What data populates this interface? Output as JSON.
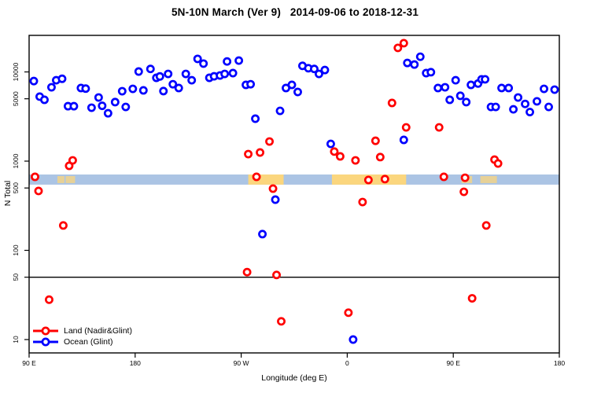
{
  "title": "5N-10N March (Ver 9)   2014-09-06 to 2018-12-31",
  "legend": {
    "items": [
      {
        "label": "Land (Nadir&Glint)",
        "color": "#ff0000"
      },
      {
        "label": "Ocean (Glint)",
        "color": "#0000ff"
      }
    ]
  },
  "chart_data": {
    "type": "scatter",
    "title": "5N-10N March (Ver 9)   2014-09-06 to 2018-12-31",
    "xlabel": "Longitude (deg E)",
    "ylabel": "N Total",
    "grid": false,
    "legend_position": "bottom-left-inside",
    "x_axis": {
      "range": [
        90,
        540
      ],
      "ticks": [
        90,
        180,
        270,
        360,
        450,
        540
      ],
      "tick_labels": [
        "90 E",
        "180",
        "90 W",
        "0",
        "90 E",
        "180"
      ],
      "note": "longitude unwrapped eastward starting at 90E"
    },
    "y_axis": {
      "scale": "log10",
      "range": [
        7,
        26000
      ],
      "ticks": [
        10,
        50,
        100,
        500,
        1000,
        5000,
        10000
      ],
      "tick_labels": [
        "10",
        "50",
        "100",
        "500",
        "1000",
        "5000",
        "10000"
      ]
    },
    "reference_line": {
      "n": 50,
      "color": "#000000"
    },
    "latitude_band": {
      "n_range": [
        545,
        708
      ],
      "ocean_color": "#abc4e4",
      "land_color": "#fbd67e",
      "land_patches": [
        {
          "from": 114,
          "to": 120,
          "style": "sparse"
        },
        {
          "from": 121,
          "to": 129,
          "style": "sparse"
        },
        {
          "from": 276,
          "to": 306,
          "style": "solid"
        },
        {
          "from": 347,
          "to": 410,
          "style": "solid"
        },
        {
          "from": 457,
          "to": 466,
          "style": "sparse"
        },
        {
          "from": 473,
          "to": 487,
          "style": "sparse"
        }
      ]
    },
    "series": [
      {
        "name": "Ocean (Glint)",
        "color": "#0000ff",
        "points": [
          [
            94,
            7900
          ],
          [
            99,
            5280
          ],
          [
            103,
            4870
          ],
          [
            109,
            6730
          ],
          [
            113,
            8070
          ],
          [
            118,
            8380
          ],
          [
            123,
            4130
          ],
          [
            128,
            4130
          ],
          [
            134,
            6600
          ],
          [
            138,
            6500
          ],
          [
            143,
            3970
          ],
          [
            149,
            5170
          ],
          [
            152,
            4170
          ],
          [
            157,
            3440
          ],
          [
            163,
            4590
          ],
          [
            169,
            6080
          ],
          [
            172,
            4050
          ],
          [
            178,
            6460
          ],
          [
            183,
            10100
          ],
          [
            187,
            6210
          ],
          [
            193,
            10800
          ],
          [
            198,
            8590
          ],
          [
            201,
            8900
          ],
          [
            204,
            6100
          ],
          [
            208,
            9500
          ],
          [
            212,
            7280
          ],
          [
            217,
            6600
          ],
          [
            223,
            9500
          ],
          [
            228,
            8070
          ],
          [
            233,
            14000
          ],
          [
            238,
            12400
          ],
          [
            243,
            8590
          ],
          [
            247,
            8930
          ],
          [
            252,
            9120
          ],
          [
            256,
            9500
          ],
          [
            258,
            13100
          ],
          [
            263,
            9700
          ],
          [
            268,
            13400
          ],
          [
            274,
            7160
          ],
          [
            278,
            7280
          ],
          [
            282,
            2990
          ],
          [
            288,
            152
          ],
          [
            299,
            370
          ],
          [
            303,
            3660
          ],
          [
            308,
            6600
          ],
          [
            313,
            7160
          ],
          [
            318,
            5960
          ],
          [
            322,
            11700
          ],
          [
            327,
            11000
          ],
          [
            332,
            10800
          ],
          [
            336,
            9500
          ],
          [
            341,
            10500
          ],
          [
            346,
            1560
          ],
          [
            365,
            10
          ],
          [
            408,
            1730
          ],
          [
            411,
            12600
          ],
          [
            417,
            12100
          ],
          [
            422,
            14800
          ],
          [
            427,
            9700
          ],
          [
            431,
            9930
          ],
          [
            437,
            6600
          ],
          [
            443,
            6730
          ],
          [
            447,
            4870
          ],
          [
            452,
            8070
          ],
          [
            456,
            5400
          ],
          [
            461,
            4590
          ],
          [
            465,
            7160
          ],
          [
            471,
            7410
          ],
          [
            474,
            8260
          ],
          [
            477,
            8260
          ],
          [
            482,
            4050
          ],
          [
            486,
            4050
          ],
          [
            491,
            6600
          ],
          [
            497,
            6600
          ],
          [
            501,
            3810
          ],
          [
            505,
            5170
          ],
          [
            511,
            4380
          ],
          [
            515,
            3550
          ],
          [
            521,
            4680
          ],
          [
            527,
            6460
          ],
          [
            531,
            4050
          ],
          [
            536,
            6330
          ]
        ]
      },
      {
        "name": "Land (Nadir&Glint)",
        "color": "#ff0000",
        "points": [
          [
            95,
            667
          ],
          [
            98,
            463
          ],
          [
            124,
            886
          ],
          [
            127,
            1020
          ],
          [
            119,
            190
          ],
          [
            107,
            28
          ],
          [
            275,
            57
          ],
          [
            276,
            1200
          ],
          [
            283,
            667
          ],
          [
            286,
            1250
          ],
          [
            294,
            1660
          ],
          [
            297,
            492
          ],
          [
            300,
            53
          ],
          [
            304,
            16
          ],
          [
            349,
            1280
          ],
          [
            354,
            1130
          ],
          [
            361,
            20
          ],
          [
            367,
            1020
          ],
          [
            373,
            348
          ],
          [
            378,
            615
          ],
          [
            384,
            1690
          ],
          [
            388,
            1110
          ],
          [
            392,
            629
          ],
          [
            398,
            4490
          ],
          [
            403,
            18600
          ],
          [
            408,
            21000
          ],
          [
            410,
            2390
          ],
          [
            438,
            2390
          ],
          [
            442,
            667
          ],
          [
            459,
            453
          ],
          [
            460,
            651
          ],
          [
            466,
            29
          ],
          [
            478,
            190
          ],
          [
            485,
            1040
          ],
          [
            488,
            941
          ]
        ]
      }
    ]
  }
}
